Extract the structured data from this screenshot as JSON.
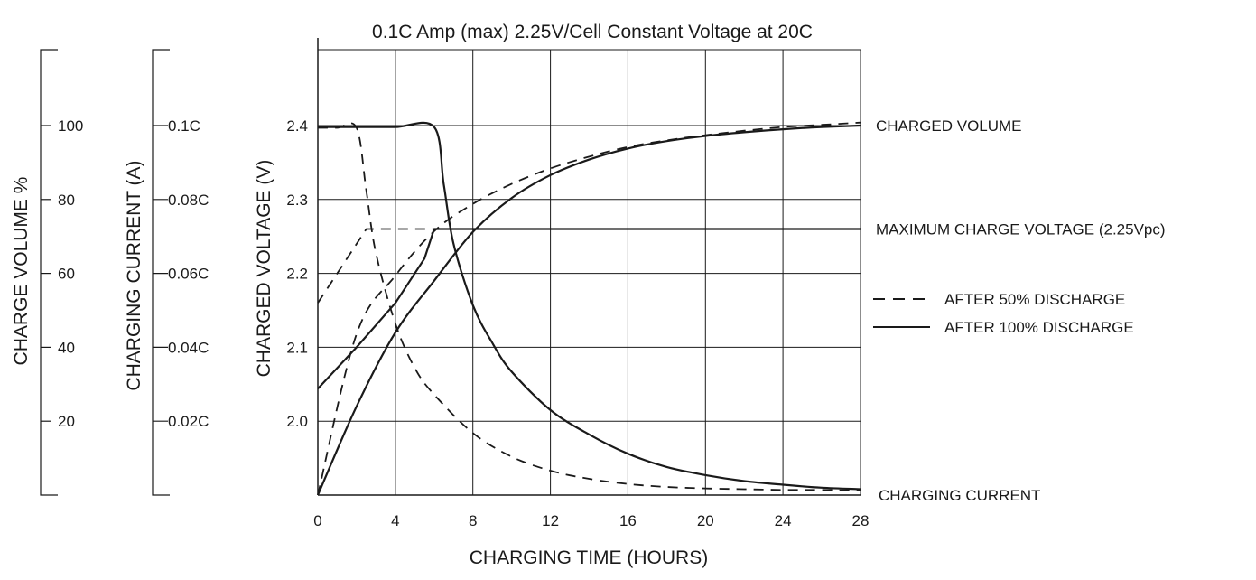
{
  "chart_data": {
    "type": "line",
    "title": "0.1C Amp (max) 2.25V/Cell Constant Voltage at 20C",
    "xlabel": "CHARGING TIME (HOURS)",
    "ylabel": "CHARGED VOLTAGE (V)",
    "xlim": [
      0,
      28
    ],
    "ylim": [
      1.9,
      2.5
    ],
    "x_ticks": [
      0,
      4,
      8,
      12,
      16,
      20,
      24,
      28
    ],
    "y_ticks": [
      2.0,
      2.1,
      2.2,
      2.3,
      2.4
    ],
    "grid": true,
    "secondary_axes": [
      {
        "label": "CHARGE VOLUME %",
        "ticks": [
          {
            "label": "100",
            "voltage": 2.4
          },
          {
            "label": "80",
            "voltage": 2.3
          },
          {
            "label": "60",
            "voltage": 2.2
          },
          {
            "label": "40",
            "voltage": 2.1
          },
          {
            "label": "20",
            "voltage": 2.0
          }
        ]
      },
      {
        "label": "CHARGING CURRENT (A)",
        "ticks": [
          {
            "label": "0.1C",
            "voltage": 2.4
          },
          {
            "label": "0.08C",
            "voltage": 2.3
          },
          {
            "label": "0.06C",
            "voltage": 2.2
          },
          {
            "label": "0.04C",
            "voltage": 2.1
          },
          {
            "label": "0.02C",
            "voltage": 2.0
          }
        ]
      }
    ],
    "legend": {
      "position": "right",
      "entries": [
        {
          "label": "AFTER 50% DISCHARGE",
          "style": "dashed"
        },
        {
          "label": "AFTER 100% DISCHARGE",
          "style": "solid"
        }
      ]
    },
    "curve_labels": [
      {
        "text": "CHARGED VOLUME",
        "voltage": 2.4
      },
      {
        "text": "MAXIMUM CHARGE VOLTAGE (2.25Vpc)",
        "voltage": 2.26
      },
      {
        "text": "CHARGING CURRENT",
        "voltage": 1.9
      }
    ],
    "series": [
      {
        "style": "dashed",
        "curve": "voltage",
        "x": [
          0,
          2.5,
          28
        ],
        "y": [
          2.16,
          2.26,
          2.26
        ]
      },
      {
        "style": "solid",
        "curve": "voltage",
        "x": [
          0,
          2,
          4,
          5.5,
          6,
          28
        ],
        "y": [
          2.044,
          2.1,
          2.16,
          2.22,
          2.26,
          2.26
        ]
      },
      {
        "style": "dashed",
        "curve": "volume",
        "x": [
          0,
          2,
          4,
          6,
          8,
          10,
          12,
          14,
          16,
          18,
          20,
          22,
          24,
          26,
          28
        ],
        "y": [
          1.9,
          2.118,
          2.197,
          2.257,
          2.294,
          2.321,
          2.342,
          2.358,
          2.371,
          2.38,
          2.387,
          2.393,
          2.398,
          2.401,
          2.404
        ]
      },
      {
        "style": "solid",
        "curve": "volume",
        "x": [
          0,
          2,
          4,
          6,
          8,
          10,
          12,
          14,
          16,
          18,
          20,
          22,
          24,
          26,
          28
        ],
        "y": [
          1.9,
          2.02,
          2.12,
          2.19,
          2.256,
          2.302,
          2.333,
          2.354,
          2.369,
          2.379,
          2.386,
          2.391,
          2.395,
          2.398,
          2.4
        ]
      },
      {
        "style": "dashed",
        "curve": "current",
        "x": [
          0,
          1,
          2,
          2.5,
          3,
          4,
          5,
          6,
          8,
          10,
          12,
          14,
          16,
          18,
          20,
          22,
          24,
          26,
          28
        ],
        "y": [
          2.397,
          2.397,
          2.397,
          2.312,
          2.227,
          2.132,
          2.072,
          2.036,
          1.984,
          1.952,
          1.933,
          1.922,
          1.915,
          1.911,
          1.909,
          1.908,
          1.907,
          1.907,
          1.906
        ]
      },
      {
        "style": "solid",
        "curve": "current",
        "x": [
          0,
          2,
          4,
          6,
          6.5,
          7,
          8,
          9,
          10,
          12,
          14,
          16,
          18,
          20,
          22,
          24,
          26,
          28
        ],
        "y": [
          2.398,
          2.398,
          2.398,
          2.398,
          2.32,
          2.24,
          2.157,
          2.106,
          2.067,
          2.015,
          1.982,
          1.956,
          1.938,
          1.927,
          1.919,
          1.914,
          1.91,
          1.908
        ]
      }
    ]
  }
}
